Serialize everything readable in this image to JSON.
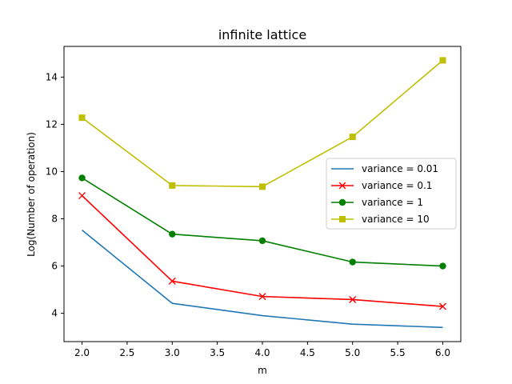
{
  "chart_data": {
    "type": "line",
    "title": "infinite lattice",
    "xlabel": "m",
    "ylabel": "Log(Number of operation)",
    "x": [
      2.0,
      3.0,
      4.0,
      5.0,
      6.0
    ],
    "xlim": [
      1.8,
      6.2
    ],
    "ylim": [
      2.8,
      15.3
    ],
    "xticks": [
      2.0,
      2.5,
      3.0,
      3.5,
      4.0,
      4.5,
      5.0,
      5.5,
      6.0
    ],
    "xtick_labels": [
      "2.0",
      "2.5",
      "3.0",
      "3.5",
      "4.0",
      "4.5",
      "5.0",
      "5.5",
      "6.0"
    ],
    "yticks": [
      4,
      6,
      8,
      10,
      12,
      14
    ],
    "ytick_labels": [
      "4",
      "6",
      "8",
      "10",
      "12",
      "14"
    ],
    "grid": false,
    "legend_position": "center-right",
    "series": [
      {
        "name": "variance = 0.01",
        "color": "#1f77b4",
        "marker": "none",
        "values": [
          7.52,
          4.42,
          3.9,
          3.54,
          3.4
        ]
      },
      {
        "name": "variance = 0.1",
        "color": "#ff0000",
        "marker": "x",
        "values": [
          8.98,
          5.36,
          4.71,
          4.58,
          4.29
        ]
      },
      {
        "name": "variance = 1",
        "color": "#008000",
        "marker": "circle",
        "values": [
          9.73,
          7.35,
          7.07,
          6.17,
          6.0
        ]
      },
      {
        "name": "variance = 10",
        "color": "#bfbf00",
        "marker": "square",
        "values": [
          12.28,
          9.41,
          9.36,
          11.47,
          14.71
        ]
      }
    ]
  }
}
